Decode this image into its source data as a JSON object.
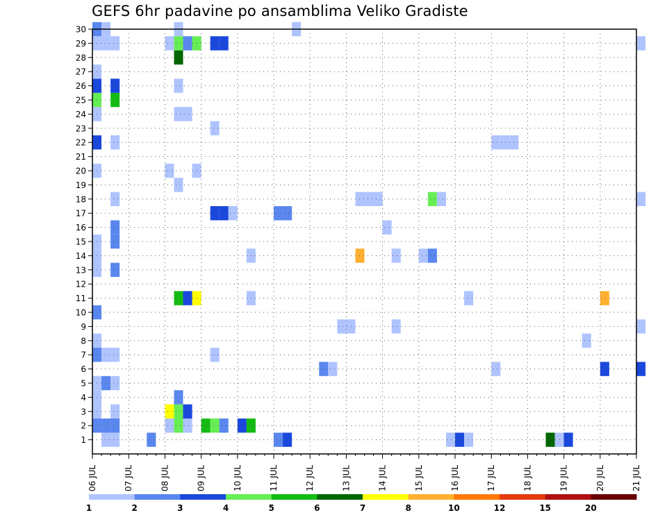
{
  "chart_data": {
    "type": "heatmap",
    "title": "GEFS 6hr padavine po ansamblima Veliko Gradiste",
    "xlabel": "",
    "ylabel": "",
    "members": [
      1,
      2,
      3,
      4,
      5,
      6,
      7,
      8,
      9,
      10,
      11,
      12,
      13,
      14,
      15,
      16,
      17,
      18,
      19,
      20,
      21,
      22,
      23,
      24,
      25,
      26,
      27,
      28,
      29,
      30
    ],
    "time_ticks": [
      "06 JUL",
      "07 JUL",
      "08 JUL",
      "09 JUL",
      "10 JUL",
      "11 JUL",
      "12 JUL",
      "13 JUL",
      "14 JUL",
      "15 JUL",
      "16 JUL",
      "17 JUL",
      "18 JUL",
      "19 JUL",
      "20 JUL",
      "21 JUL"
    ],
    "time_range_days": [
      0,
      15
    ],
    "member_range": [
      0,
      30
    ],
    "steps_per_day": 4,
    "levels": [
      1,
      2,
      3,
      4,
      5,
      6,
      7,
      8,
      10,
      12,
      15,
      20
    ],
    "colors": [
      "#afc4ff",
      "#5a87ef",
      "#1b48dc",
      "#66ee55",
      "#13bb13",
      "#006600",
      "#ffff00",
      "#ffb030",
      "#ff7a00",
      "#e63a10",
      "#b01010",
      "#6a0000"
    ],
    "cells": [
      [
        1,
        0.25,
        1
      ],
      [
        1,
        0.5,
        1
      ],
      [
        1,
        1.5,
        2
      ],
      [
        1,
        5.0,
        2
      ],
      [
        1,
        5.25,
        3
      ],
      [
        1,
        9.75,
        1
      ],
      [
        1,
        10.0,
        3
      ],
      [
        1,
        10.25,
        1
      ],
      [
        1,
        12.5,
        6
      ],
      [
        1,
        12.75,
        1
      ],
      [
        1,
        13.0,
        3
      ],
      [
        2,
        0.0,
        2
      ],
      [
        2,
        0.25,
        2
      ],
      [
        2,
        0.5,
        2
      ],
      [
        2,
        2.0,
        1
      ],
      [
        2,
        2.25,
        4
      ],
      [
        2,
        2.5,
        1
      ],
      [
        2,
        3.0,
        5
      ],
      [
        2,
        3.25,
        4
      ],
      [
        2,
        3.5,
        2
      ],
      [
        2,
        4.0,
        3
      ],
      [
        2,
        4.25,
        5
      ],
      [
        3,
        0.0,
        1
      ],
      [
        3,
        0.5,
        1
      ],
      [
        3,
        2.0,
        7
      ],
      [
        3,
        2.25,
        4
      ],
      [
        3,
        2.5,
        3
      ],
      [
        4,
        0.0,
        1
      ],
      [
        4,
        2.25,
        2
      ],
      [
        5,
        0.0,
        1
      ],
      [
        5,
        0.25,
        2
      ],
      [
        5,
        0.5,
        1
      ],
      [
        6,
        6.25,
        2
      ],
      [
        6,
        6.5,
        1
      ],
      [
        6,
        11.0,
        1
      ],
      [
        6,
        14.0,
        3
      ],
      [
        6,
        15.0,
        3
      ],
      [
        7,
        0.0,
        2
      ],
      [
        7,
        0.25,
        1
      ],
      [
        7,
        0.5,
        1
      ],
      [
        7,
        3.25,
        1
      ],
      [
        8,
        0.0,
        1
      ],
      [
        8,
        13.5,
        1
      ],
      [
        9,
        6.75,
        1
      ],
      [
        9,
        7.0,
        1
      ],
      [
        9,
        8.25,
        1
      ],
      [
        9,
        15.0,
        1
      ],
      [
        10,
        0.0,
        2
      ],
      [
        11,
        2.25,
        5
      ],
      [
        11,
        2.5,
        3
      ],
      [
        11,
        2.75,
        7
      ],
      [
        11,
        4.25,
        1
      ],
      [
        11,
        10.25,
        1
      ],
      [
        11,
        14.0,
        8
      ],
      [
        13,
        0.0,
        1
      ],
      [
        13,
        0.5,
        2
      ],
      [
        14,
        0.0,
        1
      ],
      [
        14,
        7.25,
        8
      ],
      [
        14,
        8.25,
        1
      ],
      [
        14,
        9.0,
        1
      ],
      [
        14,
        9.25,
        2
      ],
      [
        14,
        4.25,
        1
      ],
      [
        15,
        0.0,
        1
      ],
      [
        15,
        0.5,
        2
      ],
      [
        16,
        0.5,
        2
      ],
      [
        16,
        8.0,
        1
      ],
      [
        17,
        3.25,
        3
      ],
      [
        17,
        3.5,
        3
      ],
      [
        17,
        3.75,
        1
      ],
      [
        17,
        5.0,
        2
      ],
      [
        17,
        5.25,
        2
      ],
      [
        18,
        0.5,
        1
      ],
      [
        18,
        7.25,
        1
      ],
      [
        18,
        7.5,
        1
      ],
      [
        18,
        7.75,
        1
      ],
      [
        18,
        9.25,
        4
      ],
      [
        18,
        9.5,
        1
      ],
      [
        18,
        15.0,
        1
      ],
      [
        19,
        2.25,
        1
      ],
      [
        20,
        0.0,
        1
      ],
      [
        20,
        2.0,
        1
      ],
      [
        20,
        2.75,
        1
      ],
      [
        22,
        0.0,
        3
      ],
      [
        22,
        0.5,
        1
      ],
      [
        22,
        11.0,
        1
      ],
      [
        22,
        11.25,
        1
      ],
      [
        22,
        11.5,
        1
      ],
      [
        23,
        3.25,
        1
      ],
      [
        24,
        0.0,
        1
      ],
      [
        24,
        2.25,
        1
      ],
      [
        24,
        2.5,
        1
      ],
      [
        25,
        0.0,
        4
      ],
      [
        25,
        0.5,
        5
      ],
      [
        26,
        0.0,
        3
      ],
      [
        26,
        0.5,
        3
      ],
      [
        26,
        2.25,
        1
      ],
      [
        27,
        0.0,
        1
      ],
      [
        28,
        2.25,
        6
      ],
      [
        29,
        0.0,
        1
      ],
      [
        29,
        0.25,
        1
      ],
      [
        29,
        0.5,
        1
      ],
      [
        29,
        2.0,
        1
      ],
      [
        29,
        2.25,
        4
      ],
      [
        29,
        2.5,
        2
      ],
      [
        29,
        2.75,
        4
      ],
      [
        29,
        3.25,
        3
      ],
      [
        29,
        3.5,
        3
      ],
      [
        29,
        15.0,
        1
      ],
      [
        30,
        0.0,
        2
      ],
      [
        30,
        0.25,
        1
      ],
      [
        30,
        2.25,
        1
      ],
      [
        30,
        5.5,
        1
      ]
    ],
    "grid": true,
    "legend": "colorbar-bottom"
  }
}
